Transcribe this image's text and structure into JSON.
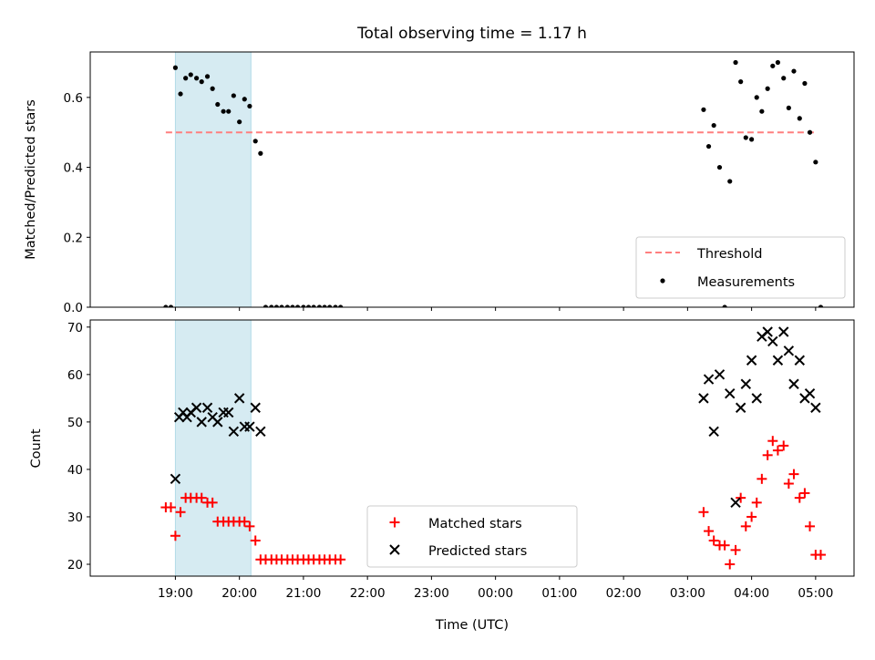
{
  "title": "Total observing time = 1.17 h",
  "xlabel": "Time (UTC)",
  "x_ticks": [
    "19:00",
    "20:00",
    "21:00",
    "22:00",
    "23:00",
    "00:00",
    "01:00",
    "02:00",
    "03:00",
    "04:00",
    "05:00"
  ],
  "x_tick_hours": [
    19,
    20,
    21,
    22,
    23,
    24,
    25,
    26,
    27,
    28,
    29
  ],
  "x_range_hours": [
    17.67,
    29.6
  ],
  "shaded_span_hours": [
    19.0,
    20.18
  ],
  "colors": {
    "shade": "#add8e6",
    "threshold": "#ff7f7f",
    "measurements": "#000000",
    "matched": "#ff0000",
    "predicted": "#000000"
  },
  "chart_data": [
    {
      "type": "scatter",
      "ylabel": "Matched/Predicted stars",
      "ylim": [
        0.0,
        0.73
      ],
      "y_ticks": [
        "0.0",
        "0.2",
        "0.4",
        "0.6"
      ],
      "y_tick_values": [
        0.0,
        0.2,
        0.4,
        0.6
      ],
      "legend_position": "lower-right",
      "threshold": {
        "name": "Threshold",
        "value": 0.5,
        "x_from": 18.85,
        "x_to": 29.0
      },
      "series": [
        {
          "name": "Measurements",
          "x": [
            18.85,
            18.93,
            19.0,
            19.08,
            19.16,
            19.24,
            19.33,
            19.41,
            19.5,
            19.58,
            19.66,
            19.75,
            19.83,
            19.91,
            20.0,
            20.08,
            20.16,
            20.25,
            20.33,
            20.41,
            20.5,
            20.58,
            20.66,
            20.75,
            20.83,
            20.91,
            21.0,
            21.08,
            21.16,
            21.25,
            21.33,
            21.41,
            21.5,
            21.58,
            27.25,
            27.33,
            27.41,
            27.5,
            27.58,
            27.66,
            27.75,
            27.83,
            27.91,
            28.0,
            28.08,
            28.16,
            28.25,
            28.33,
            28.41,
            28.5,
            28.58,
            28.66,
            28.75,
            28.83,
            28.91,
            29.0,
            29.08
          ],
          "y": [
            0.0,
            0.0,
            0.685,
            0.61,
            0.655,
            0.665,
            0.655,
            0.645,
            0.66,
            0.625,
            0.58,
            0.56,
            0.56,
            0.605,
            0.53,
            0.595,
            0.575,
            0.475,
            0.44,
            0.0,
            0.0,
            0.0,
            0.0,
            0.0,
            0.0,
            0.0,
            0.0,
            0.0,
            0.0,
            0.0,
            0.0,
            0.0,
            0.0,
            0.0,
            0.565,
            0.46,
            0.52,
            0.4,
            0.0,
            0.36,
            0.7,
            0.645,
            0.485,
            0.48,
            0.6,
            0.56,
            0.625,
            0.69,
            0.7,
            0.655,
            0.57,
            0.675,
            0.54,
            0.64,
            0.5,
            0.415,
            0.0
          ]
        }
      ]
    },
    {
      "type": "scatter",
      "ylabel": "Count",
      "ylim": [
        17.5,
        71.5
      ],
      "y_ticks": [
        "20",
        "30",
        "40",
        "50",
        "60",
        "70"
      ],
      "y_tick_values": [
        20,
        30,
        40,
        50,
        60,
        70
      ],
      "legend_position": "lower-center",
      "series": [
        {
          "name": "Matched stars",
          "marker": "plus",
          "x": [
            18.85,
            18.93,
            19.0,
            19.08,
            19.16,
            19.24,
            19.33,
            19.41,
            19.5,
            19.58,
            19.66,
            19.75,
            19.83,
            19.91,
            20.0,
            20.08,
            20.16,
            20.25,
            20.33,
            20.41,
            20.5,
            20.58,
            20.66,
            20.75,
            20.83,
            20.91,
            21.0,
            21.08,
            21.16,
            21.25,
            21.33,
            21.41,
            21.5,
            21.58,
            27.25,
            27.33,
            27.41,
            27.5,
            27.58,
            27.66,
            27.75,
            27.83,
            27.91,
            28.0,
            28.08,
            28.16,
            28.25,
            28.33,
            28.41,
            28.5,
            28.58,
            28.66,
            28.75,
            28.83,
            28.91,
            29.0,
            29.08
          ],
          "y": [
            32,
            32,
            26,
            31,
            34,
            34,
            34,
            34,
            33,
            33,
            29,
            29,
            29,
            29,
            29,
            29,
            28,
            25,
            21,
            21,
            21,
            21,
            21,
            21,
            21,
            21,
            21,
            21,
            21,
            21,
            21,
            21,
            21,
            21,
            31,
            27,
            25,
            24,
            24,
            20,
            23,
            34,
            28,
            30,
            33,
            38,
            43,
            46,
            44,
            45,
            37,
            39,
            34,
            35,
            28,
            22,
            22
          ]
        },
        {
          "name": "Predicted stars",
          "marker": "x",
          "x": [
            19.0,
            19.06,
            19.12,
            19.18,
            19.24,
            19.33,
            19.41,
            19.5,
            19.58,
            19.66,
            19.75,
            19.83,
            19.91,
            20.0,
            20.08,
            20.16,
            20.25,
            20.33,
            27.25,
            27.33,
            27.41,
            27.5,
            27.66,
            27.75,
            27.83,
            27.91,
            28.0,
            28.08,
            28.16,
            28.25,
            28.33,
            28.41,
            28.5,
            28.58,
            28.66,
            28.75,
            28.83,
            28.91,
            29.0
          ],
          "y": [
            38,
            51,
            52,
            51,
            52,
            53,
            50,
            53,
            51,
            50,
            52,
            52,
            48,
            55,
            49,
            49,
            53,
            48,
            55,
            59,
            48,
            60,
            56,
            33,
            53,
            58,
            63,
            55,
            68,
            69,
            67,
            63,
            69,
            65,
            58,
            63,
            55,
            56,
            53
          ]
        }
      ]
    }
  ]
}
